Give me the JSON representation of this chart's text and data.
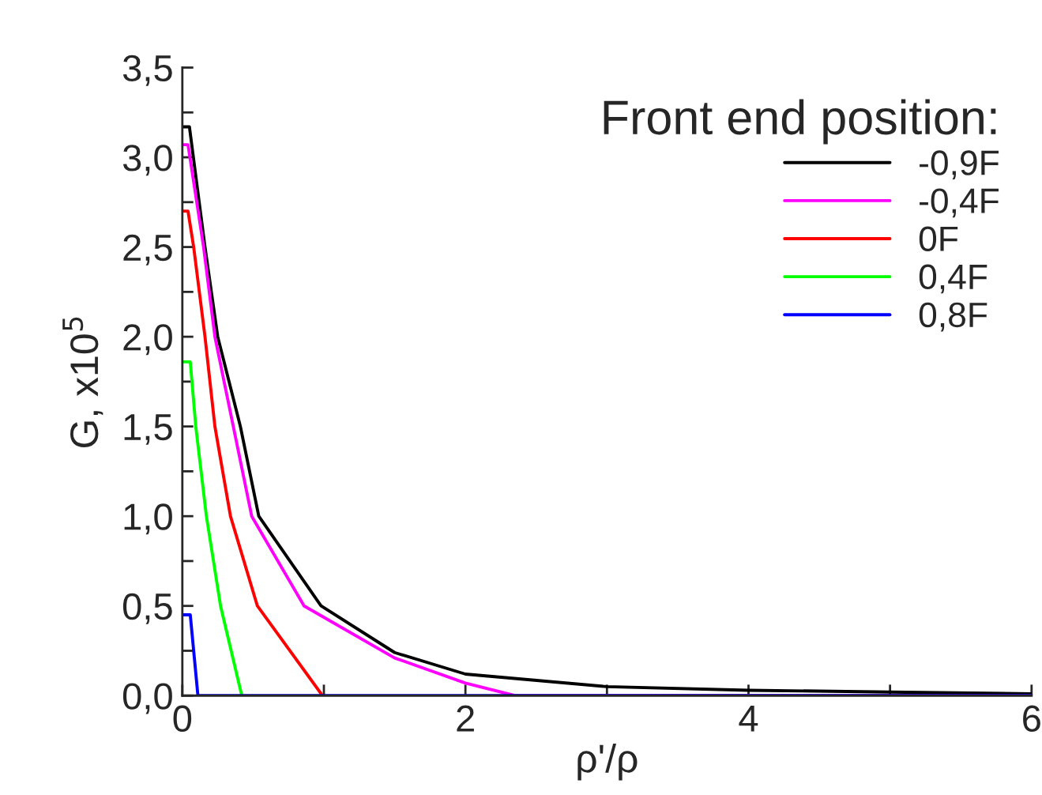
{
  "chart_data": {
    "type": "line",
    "xlabel": "ρ'/ρ",
    "ylabel": "G, x10$^{5}$",
    "legend_title": "Front end position:",
    "legend": "top right",
    "grid": false,
    "line_style": "solid",
    "marker": "none",
    "xlim": [
      0,
      6
    ],
    "ylim": [
      0,
      3.5
    ],
    "xticks": [
      0,
      {
        "value": 1,
        "label": null
      },
      2,
      {
        "value": 3,
        "label": null
      },
      4,
      {
        "value": 5,
        "label": null
      },
      6
    ],
    "yticks": [
      {
        "value": 0,
        "label": "0,0"
      },
      {
        "value": 0.25,
        "label": null
      },
      {
        "value": 0.5,
        "label": "0,5"
      },
      {
        "value": 0.75,
        "label": null
      },
      {
        "value": 1,
        "label": "1,0"
      },
      {
        "value": 1.25,
        "label": null
      },
      {
        "value": 1.5,
        "label": "1,5"
      },
      {
        "value": 1.75,
        "label": null
      },
      {
        "value": 2,
        "label": "2,0"
      },
      {
        "value": 2.25,
        "label": null
      },
      {
        "value": 2.5,
        "label": "2,5"
      },
      {
        "value": 2.75,
        "label": null
      },
      {
        "value": 3,
        "label": "3,0"
      },
      {
        "value": 3.25,
        "label": null
      },
      {
        "value": 3.5,
        "label": "3,5"
      }
    ],
    "series": [
      {
        "name": "-0,9F",
        "color": "#000000",
        "x": [
          0,
          0.05,
          0.16,
          0.25,
          0.41,
          0.54,
          0.98,
          1.5,
          2,
          3,
          4,
          5,
          6
        ],
        "values": [
          3.17,
          3.17,
          2.5,
          2.0,
          1.5,
          1.0,
          0.5,
          0.24,
          0.12,
          0.05,
          0.03,
          0.02,
          0.01
        ]
      },
      {
        "name": "-0,4F",
        "color": "#ff00ff",
        "x": [
          0,
          0.04,
          0.15,
          0.23,
          0.36,
          0.49,
          0.86,
          1.5,
          2,
          2.35,
          6
        ],
        "values": [
          3.07,
          3.07,
          2.5,
          2.0,
          1.5,
          1.0,
          0.5,
          0.21,
          0.07,
          0,
          0
        ]
      },
      {
        "name": "0F",
        "color": "#ff0000",
        "x": [
          0,
          0.04,
          0.08,
          0.16,
          0.23,
          0.34,
          0.53,
          0.99
        ],
        "values": [
          2.7,
          2.7,
          2.5,
          2.0,
          1.5,
          1.0,
          0.5,
          0
        ]
      },
      {
        "name": "0,4F",
        "color": "#00ff00",
        "x": [
          0,
          0.056,
          0.095,
          0.17,
          0.27,
          0.42
        ],
        "values": [
          1.86,
          1.86,
          1.5,
          1.0,
          0.5,
          0
        ]
      },
      {
        "name": "0,8F",
        "color": "#0000ff",
        "x": [
          0,
          0.056,
          0.11,
          6
        ],
        "values": [
          0.45,
          0.45,
          0,
          0
        ]
      }
    ]
  }
}
